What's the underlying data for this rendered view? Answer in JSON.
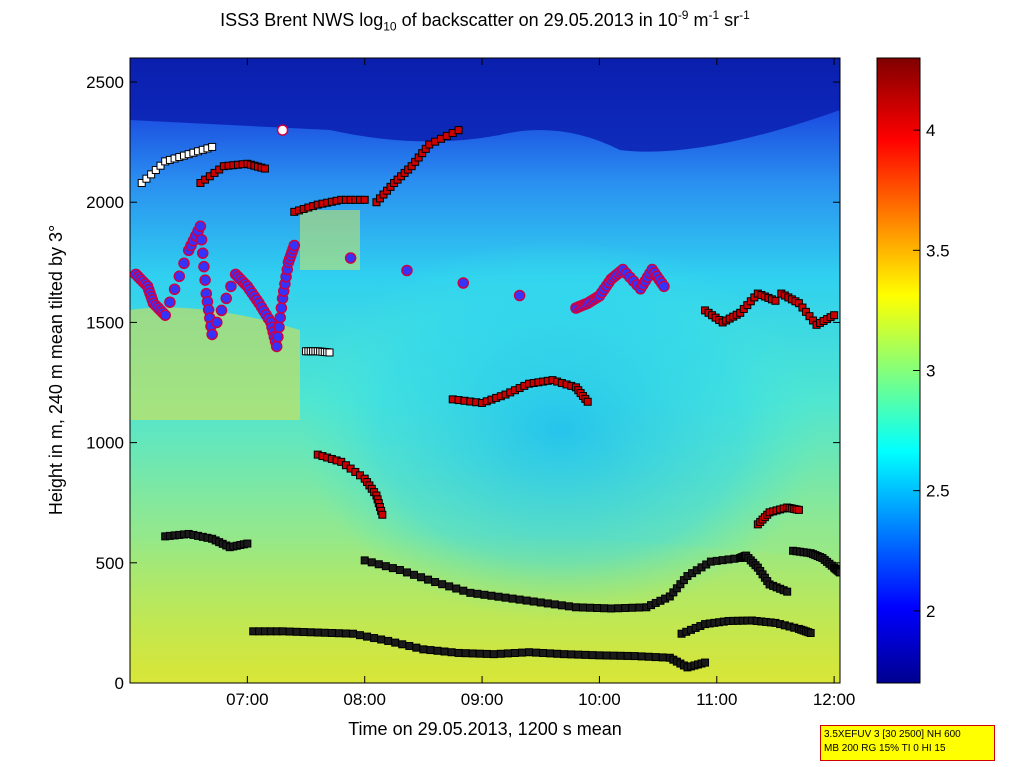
{
  "title": {
    "prefix": "ISS3 Brent NWS log",
    "sub": "10",
    "mid": " of backscatter on 29.05.2013 in 10",
    "sup1": "-9",
    "unit1": " m",
    "sup2": "-1",
    "unit2": " sr",
    "sup3": "-1"
  },
  "info_box": {
    "line1": "3.5XEFUV 3 [30 2500] NH 600",
    "line2": "MB 200 RG 15% TI 0 HI 15"
  },
  "colors": {
    "colormap": [
      "#00008f",
      "#0000ff",
      "#00ffff",
      "#ffff00",
      "#ff0000",
      "#800000"
    ],
    "sq_fill_red": "#cc0000",
    "sq_fill_white": "#ffffff",
    "sq_fill_cyan": "#40e0e0",
    "sq_stroke": "#000000",
    "circle_fill": "#3333ff",
    "circle_stroke": "#cc0044"
  },
  "chart_data": {
    "type": "heatmap",
    "title": "ISS3 Brent NWS log10 of backscatter on 29.05.2013 in 10^-9 m^-1 sr^-1",
    "xlabel": "Time on 29.05.2013, 1200 s mean",
    "ylabel": "Height in m, 240 m mean tilted by 3°",
    "x_unit": "hours",
    "xlim": [
      6.0,
      12.05
    ],
    "ylim": [
      0,
      2600
    ],
    "xticks": [
      7,
      8,
      9,
      10,
      11,
      12
    ],
    "xtick_labels": [
      "07:00",
      "08:00",
      "09:00",
      "10:00",
      "11:00",
      "12:00"
    ],
    "yticks": [
      0,
      500,
      1000,
      1500,
      2000,
      2500
    ],
    "ytick_labels": [
      "0",
      "500",
      "1000",
      "1500",
      "2000",
      "2500"
    ],
    "colorbar": {
      "range": [
        1.7,
        4.3
      ],
      "ticks": [
        2,
        2.5,
        3,
        3.5,
        4
      ],
      "tick_labels": [
        "2",
        "2.5",
        "3",
        "3.5",
        "4"
      ]
    },
    "marker_series": [
      {
        "marker": "square",
        "fill": "dark",
        "points": [
          [
            7.05,
            215
          ],
          [
            7.3,
            215
          ],
          [
            7.6,
            210
          ],
          [
            7.9,
            205
          ],
          [
            8.2,
            175
          ],
          [
            8.5,
            140
          ],
          [
            8.8,
            125
          ],
          [
            9.1,
            120
          ],
          [
            9.4,
            128
          ],
          [
            9.7,
            120
          ],
          [
            10.0,
            115
          ],
          [
            10.3,
            112
          ],
          [
            10.6,
            105
          ],
          [
            10.75,
            65
          ],
          [
            10.9,
            85
          ]
        ]
      },
      {
        "marker": "square",
        "fill": "dark",
        "points": [
          [
            10.7,
            205
          ],
          [
            10.9,
            245
          ],
          [
            11.1,
            258
          ],
          [
            11.3,
            260
          ],
          [
            11.5,
            250
          ],
          [
            11.7,
            225
          ],
          [
            11.8,
            208
          ]
        ]
      },
      {
        "marker": "square",
        "fill": "dark",
        "points": [
          [
            8.0,
            510
          ],
          [
            8.3,
            470
          ],
          [
            8.6,
            420
          ],
          [
            8.9,
            375
          ],
          [
            9.2,
            355
          ],
          [
            9.5,
            335
          ],
          [
            9.8,
            315
          ],
          [
            10.1,
            310
          ],
          [
            10.4,
            315
          ],
          [
            10.6,
            360
          ],
          [
            10.75,
            445
          ],
          [
            10.95,
            505
          ],
          [
            11.2,
            520
          ],
          [
            11.25,
            530
          ],
          [
            11.35,
            480
          ],
          [
            11.45,
            410
          ],
          [
            11.6,
            380
          ]
        ]
      },
      {
        "marker": "square",
        "fill": "dark",
        "points": [
          [
            11.65,
            550
          ],
          [
            11.8,
            540
          ],
          [
            11.9,
            520
          ],
          [
            12.0,
            480
          ],
          [
            12.05,
            460
          ]
        ]
      },
      {
        "marker": "square",
        "fill": "dark",
        "points": [
          [
            6.3,
            610
          ],
          [
            6.5,
            620
          ],
          [
            6.7,
            600
          ],
          [
            6.85,
            565
          ],
          [
            7.0,
            580
          ]
        ]
      },
      {
        "marker": "square",
        "fill": "red",
        "points": [
          [
            7.6,
            950
          ],
          [
            7.8,
            920
          ],
          [
            8.0,
            850
          ],
          [
            8.1,
            780
          ],
          [
            8.15,
            700
          ]
        ]
      },
      {
        "marker": "square",
        "fill": "red",
        "points": [
          [
            11.35,
            660
          ],
          [
            11.45,
            710
          ],
          [
            11.6,
            730
          ],
          [
            11.7,
            720
          ]
        ]
      },
      {
        "marker": "square",
        "fill": "red",
        "points": [
          [
            8.75,
            1180
          ],
          [
            9.0,
            1165
          ],
          [
            9.2,
            1200
          ],
          [
            9.4,
            1245
          ],
          [
            9.6,
            1260
          ],
          [
            9.8,
            1230
          ],
          [
            9.9,
            1170
          ]
        ]
      },
      {
        "marker": "square",
        "fill": "red",
        "points": [
          [
            10.9,
            1550
          ],
          [
            11.05,
            1500
          ],
          [
            11.2,
            1540
          ],
          [
            11.35,
            1620
          ],
          [
            11.5,
            1590
          ]
        ]
      },
      {
        "marker": "square",
        "fill": "red",
        "points": [
          [
            11.55,
            1620
          ],
          [
            11.7,
            1580
          ],
          [
            11.85,
            1490
          ],
          [
            12.0,
            1530
          ]
        ]
      },
      {
        "marker": "square",
        "fill": "red",
        "points": [
          [
            7.4,
            1960
          ],
          [
            7.6,
            1990
          ],
          [
            7.8,
            2010
          ],
          [
            8.0,
            2010
          ]
        ]
      },
      {
        "marker": "square",
        "fill": "red",
        "points": [
          [
            8.1,
            2000
          ],
          [
            8.25,
            2080
          ],
          [
            8.4,
            2150
          ],
          [
            8.55,
            2240
          ],
          [
            8.8,
            2300
          ]
        ]
      },
      {
        "marker": "square",
        "fill": "white",
        "points": [
          [
            6.1,
            2080
          ],
          [
            6.3,
            2170
          ],
          [
            6.5,
            2200
          ],
          [
            6.7,
            2230
          ]
        ]
      },
      {
        "marker": "square",
        "fill": "red",
        "points": [
          [
            6.6,
            2080
          ],
          [
            6.8,
            2150
          ],
          [
            7.0,
            2160
          ],
          [
            7.15,
            2140
          ]
        ]
      },
      {
        "marker": "square",
        "fill": "white",
        "points": [
          [
            7.5,
            1380
          ],
          [
            7.6,
            1380
          ],
          [
            7.7,
            1375
          ]
        ]
      },
      {
        "marker": "circle",
        "fill": "blue",
        "points": [
          [
            6.05,
            1700
          ],
          [
            6.15,
            1650
          ],
          [
            6.2,
            1580
          ],
          [
            6.3,
            1530
          ],
          [
            6.5,
            1800
          ],
          [
            6.6,
            1900
          ],
          [
            6.65,
            1620
          ],
          [
            6.7,
            1450
          ],
          [
            6.9,
            1700
          ],
          [
            7.0,
            1650
          ],
          [
            7.1,
            1580
          ],
          [
            7.2,
            1500
          ],
          [
            7.25,
            1400
          ],
          [
            7.3,
            1600
          ],
          [
            7.35,
            1750
          ],
          [
            7.4,
            1820
          ],
          [
            9.8,
            1560
          ],
          [
            9.9,
            1580
          ],
          [
            10.0,
            1610
          ],
          [
            10.1,
            1680
          ],
          [
            10.2,
            1720
          ],
          [
            10.35,
            1640
          ],
          [
            10.45,
            1720
          ],
          [
            10.55,
            1650
          ]
        ]
      },
      {
        "marker": "circle",
        "fill": "white",
        "points": [
          [
            7.3,
            2300
          ]
        ]
      }
    ]
  }
}
